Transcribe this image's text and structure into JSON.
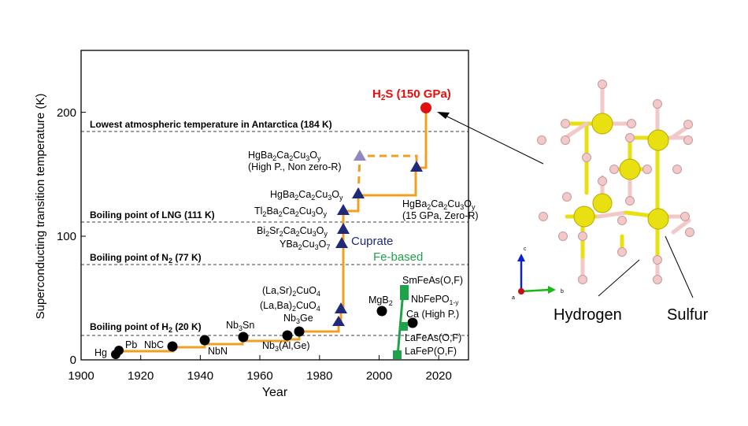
{
  "chart_data": {
    "type": "scatter",
    "xlabel": "Year",
    "ylabel": "Superconducting transition temperature (K)",
    "xlim": [
      1900,
      2030
    ],
    "ylim": [
      0,
      250
    ],
    "x_ticks": [
      "1900",
      "1920",
      "1940",
      "1960",
      "1980",
      "2000",
      "2020"
    ],
    "y_ticks": [
      "0",
      "100",
      "200"
    ],
    "reference_lines": [
      {
        "y": 184,
        "label": "Lowest atmospheric temperature in Antarctica (184 K)"
      },
      {
        "y": 111,
        "label": "Boiling point of LNG (111 K)"
      },
      {
        "y": 77,
        "label": "Boiling point of N₂ (77 K)"
      },
      {
        "y": 20,
        "label": "Boiling point of H₂ (20 K)"
      }
    ],
    "series": [
      {
        "name": "",
        "marker": "circle",
        "color": "#000000",
        "points": [
          {
            "x": 1911,
            "y": 4.2,
            "label": "Hg"
          },
          {
            "x": 1913,
            "y": 7.2,
            "label": "Pb"
          },
          {
            "x": 1930,
            "y": 9.5,
            "label": "NbC"
          },
          {
            "x": 1941,
            "y": 16,
            "label": "NbN"
          },
          {
            "x": 1954,
            "y": 18,
            "label": "Nb₃Sn"
          },
          {
            "x": 1969,
            "y": 20,
            "label": "Nb₃(Al,Ge)"
          },
          {
            "x": 1973,
            "y": 23,
            "label": "Nb₃Ge"
          },
          {
            "x": 2001,
            "y": 39,
            "label": "MgB₂"
          },
          {
            "x": 2011,
            "y": 30,
            "label": "Ca (High P.)"
          }
        ]
      },
      {
        "name": "Cuprate",
        "marker": "triangle",
        "color": "#1f2a7a",
        "points": [
          {
            "x": 1986,
            "y": 30,
            "label": "(La,Ba)₂CuO₄"
          },
          {
            "x": 1987,
            "y": 40,
            "label": "(La,Sr)₂CuO₄"
          },
          {
            "x": 1987,
            "y": 93,
            "label": "YBa₂Cu₃O₇"
          },
          {
            "x": 1988,
            "y": 105,
            "label": "Bi₂Sr₂Ca₂Cu₃Oy"
          },
          {
            "x": 1988,
            "y": 120,
            "label": "Tl₂Ba₂Ca₂Cu₃Oy"
          },
          {
            "x": 1993,
            "y": 133,
            "label": "HgBa₂Ca₂Cu₃Oy"
          },
          {
            "x": 2012,
            "y": 155,
            "label": "HgBa₂Ca₂Cu₃Oy (15 GPa, Zero-R)"
          }
        ]
      },
      {
        "name": "",
        "marker": "triangle",
        "color": "#9188c0",
        "points": [
          {
            "x": 1993,
            "y": 164,
            "label": "HgBa₂Ca₂Cu₃Oy (High P., Non zero-R)"
          }
        ]
      },
      {
        "name": "Fe-based",
        "marker": "square",
        "color": "#1fa34a",
        "points": [
          {
            "x": 2006,
            "y": 4,
            "label": "LaFeP(O,F)"
          },
          {
            "x": 2008,
            "y": 26,
            "label": "LaFeAs(O,F)"
          },
          {
            "x": 2008,
            "y": 53,
            "label": "NbFePO₁₋ᵧ"
          },
          {
            "x": 2008,
            "y": 55,
            "label": "SmFeAs(O,F)"
          }
        ]
      },
      {
        "name": "",
        "marker": "circle",
        "color": "#e01010",
        "points": [
          {
            "x": 2015,
            "y": 203,
            "label": "H₂S (150 GPa)"
          }
        ]
      }
    ]
  },
  "text": {
    "x_axis_title": "Year",
    "y_axis_title": "Superconducting transition temperature (K)",
    "lines": {
      "antarctica": "Lowest atmospheric temperature in Antarctica (184 K)",
      "lng": "Boiling point of LNG (111 K)",
      "n2_pre": "Boiling point of N",
      "n2_post": " (77 K)",
      "h2_pre": "Boiling point of H",
      "h2_post": " (20 K)"
    },
    "series_labels": {
      "cuprate": "Cuprate",
      "fe_based": "Fe-based"
    },
    "points": {
      "hg": "Hg",
      "pb": "Pb",
      "nbc": "NbC",
      "nbn": "NbN",
      "nb3sn_a": "Nb",
      "nb3sn_b": "Sn",
      "nb3ge_a": "Nb",
      "nb3ge_b": "Ge",
      "nb3alge_a": "Nb",
      "nb3alge_b": "(Al,Ge)",
      "labacuo_a": "(La,Ba)",
      "labacuo_b": "CuO",
      "lasrcuo_a": "(La,Sr)",
      "lasrcuo_b": "CuO",
      "ybco_a": "YBa",
      "ybco_b": "Cu",
      "ybco_c": "O",
      "bsco_a": "Bi",
      "bsco_b": "Sr",
      "bsco_c": "Ca",
      "bsco_d": "Cu",
      "bsco_e": "O",
      "tbcco_a": "Tl",
      "tbcco_b": "Ba",
      "tbcco_c": "Ca",
      "tbcco_d": "Cu",
      "tbcco_e": "O",
      "hg1_a": "HgBa",
      "hg1_b": "Ca",
      "hg1_c": "Cu",
      "hg1_d": "O",
      "hgP_a": "HgBa",
      "hgP_b": "Ca",
      "hgP_c": "Cu",
      "hgP_d": "O",
      "hgP_note": "(High P., Non zero-R)",
      "hg15_a": "HgBa",
      "hg15_b": "Ca",
      "hg15_c": "Cu",
      "hg15_d": "O",
      "hg15_note": "(15 GPa, Zero-R)",
      "mgb2_a": "MgB",
      "ca_highp": "Ca (High P.)",
      "smfeas": "SmFeAs(O,F)",
      "nbfepo_a": "NbFePO",
      "nbfepo_b": "1-y",
      "lafeas": "LaFeAs(O,F)",
      "lafep": "LaFeP(O,F)",
      "h2s_a": "H",
      "h2s_b": "S (150 GPa)"
    },
    "sub": {
      "two": "2",
      "three": "3",
      "four": "4",
      "seven": "7",
      "y": "y"
    },
    "structure": {
      "hydrogen": "Hydrogen",
      "sulfur": "Sulfur",
      "axis_c": "c",
      "axis_b": "b",
      "axis_a": "a"
    }
  },
  "colors": {
    "trend_line": "#f0a020",
    "cuprate": "#1f2a7a",
    "fe_based": "#1fa34a",
    "h2s": "#e01010",
    "high_p": "#9188c0",
    "sulfur": "#e8e010",
    "hydrogen": "#f2c8c8"
  }
}
